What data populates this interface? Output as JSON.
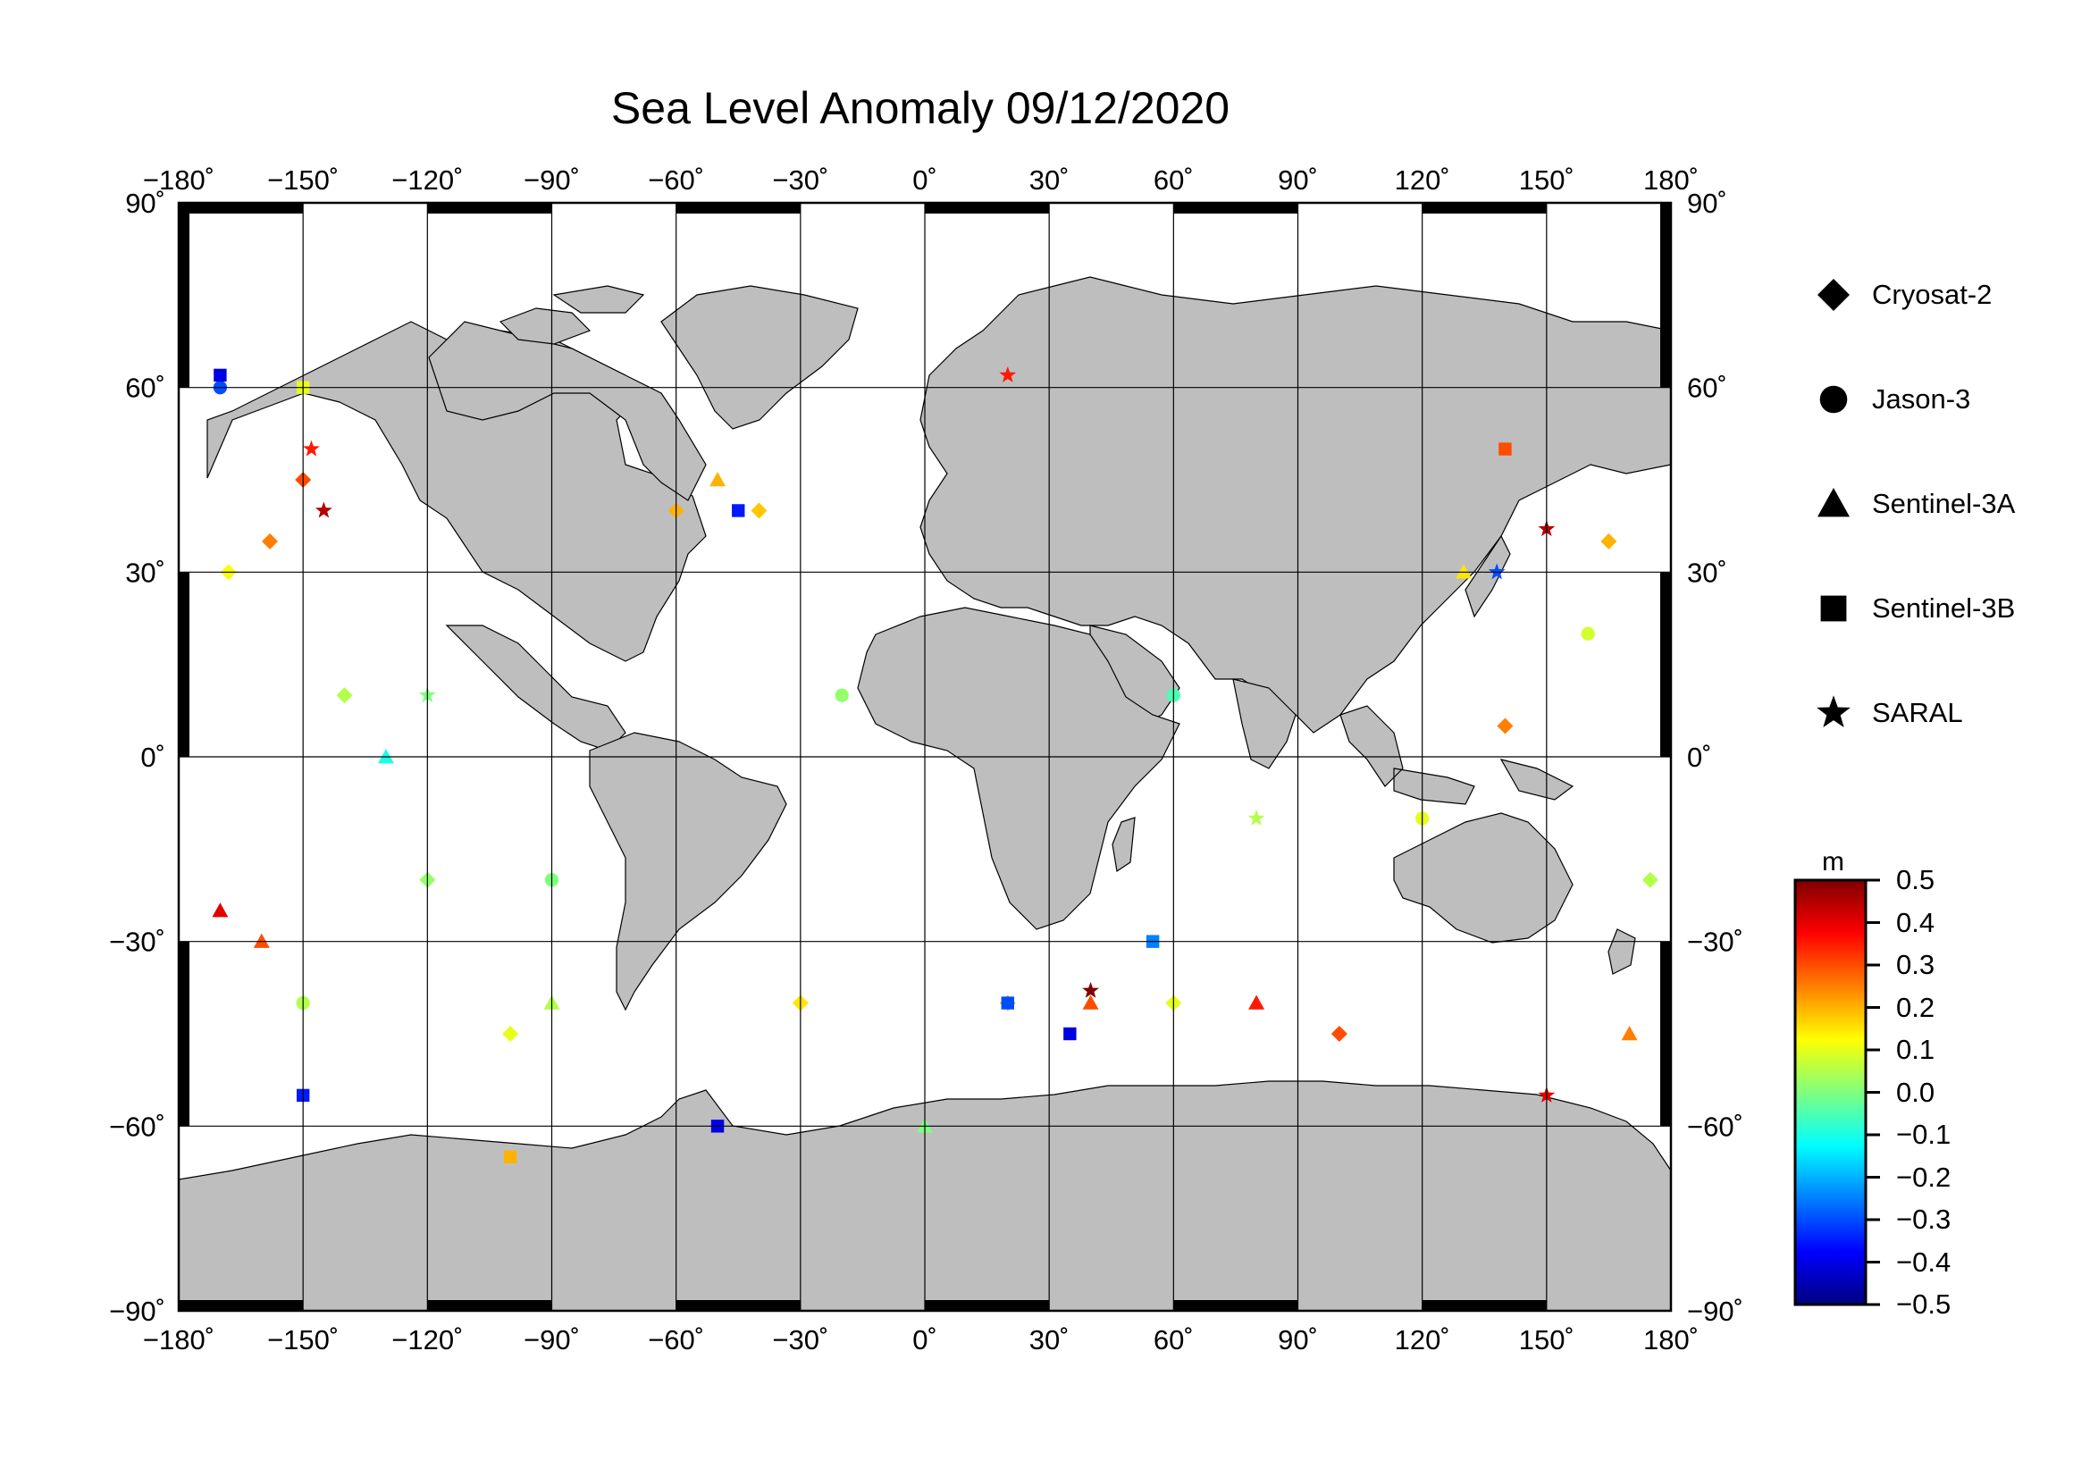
{
  "title": "Sea Level Anomaly 09/12/2020",
  "lon_ticks": [
    "−180˚",
    "−150˚",
    "−120˚",
    "−90˚",
    "−60˚",
    "−30˚",
    "0˚",
    "30˚",
    "60˚",
    "90˚",
    "120˚",
    "150˚",
    "180˚"
  ],
  "lat_ticks": [
    "90˚",
    "60˚",
    "30˚",
    "0˚",
    "−30˚",
    "−60˚",
    "−90˚"
  ],
  "map_extent": {
    "lon": [
      -180,
      180
    ],
    "lat": [
      -90,
      90
    ]
  },
  "land_color": "#bebebe",
  "legend": [
    {
      "label": "Cryosat-2",
      "symbol": "diamond"
    },
    {
      "label": "Jason-3",
      "symbol": "circle"
    },
    {
      "label": "Sentinel-3A",
      "symbol": "triangle"
    },
    {
      "label": "Sentinel-3B",
      "symbol": "square"
    },
    {
      "label": "SARAL",
      "symbol": "star"
    }
  ],
  "colorbar": {
    "unit": "m",
    "range": [
      -0.5,
      0.5
    ],
    "labels": [
      "0.5",
      "0.4",
      "0.3",
      "0.2",
      "0.1",
      "0.0",
      "−0.1",
      "−0.2",
      "−0.3",
      "−0.4",
      "−0.5"
    ],
    "colors": [
      "#00007f",
      "#0000ff",
      "#007fff",
      "#00ffff",
      "#7fff7f",
      "#ffff00",
      "#ff7f00",
      "#ff0000",
      "#7f0000"
    ]
  },
  "chart_data": {
    "type": "scatter",
    "title": "Sea Level Anomaly 09/12/2020",
    "xlabel": "",
    "ylabel": "",
    "xlim": [
      -180,
      180
    ],
    "ylim": [
      -90,
      90
    ],
    "color_scale": {
      "unit": "m",
      "range": [
        -0.5,
        0.5
      ]
    },
    "series": [
      {
        "name": "Cryosat-2",
        "points": [
          [
            -168,
            30,
            0.12
          ],
          [
            -158,
            35,
            0.25
          ],
          [
            -150,
            45,
            0.3
          ],
          [
            -140,
            10,
            0.05
          ],
          [
            -120,
            -20,
            0.02
          ],
          [
            -100,
            -45,
            0.1
          ],
          [
            -60,
            40,
            0.2
          ],
          [
            -40,
            40,
            0.18
          ],
          [
            -30,
            -40,
            0.15
          ],
          [
            20,
            -40,
            0.2
          ],
          [
            60,
            -40,
            0.1
          ],
          [
            100,
            -45,
            0.3
          ],
          [
            140,
            5,
            0.25
          ],
          [
            165,
            35,
            0.2
          ],
          [
            175,
            -20,
            0.05
          ]
        ]
      },
      {
        "name": "Jason-3",
        "points": [
          [
            -170,
            60,
            -0.3
          ],
          [
            -150,
            -40,
            0.05
          ],
          [
            -90,
            -20,
            0.0
          ],
          [
            -20,
            10,
            0.02
          ],
          [
            60,
            10,
            -0.05
          ],
          [
            120,
            -10,
            0.1
          ],
          [
            160,
            20,
            0.08
          ]
        ]
      },
      {
        "name": "Sentinel-3A",
        "points": [
          [
            -170,
            -25,
            0.4
          ],
          [
            -160,
            -30,
            0.3
          ],
          [
            -130,
            0,
            -0.1
          ],
          [
            -90,
            -40,
            0.05
          ],
          [
            -50,
            45,
            0.2
          ],
          [
            0,
            -60,
            0.0
          ],
          [
            40,
            -40,
            0.3
          ],
          [
            80,
            -40,
            0.35
          ],
          [
            130,
            30,
            0.15
          ],
          [
            170,
            -45,
            0.25
          ]
        ]
      },
      {
        "name": "Sentinel-3B",
        "points": [
          [
            -170,
            62,
            -0.4
          ],
          [
            -150,
            -55,
            -0.35
          ],
          [
            -50,
            -60,
            -0.4
          ],
          [
            -45,
            40,
            -0.35
          ],
          [
            20,
            -40,
            -0.3
          ],
          [
            35,
            -45,
            -0.4
          ],
          [
            55,
            -30,
            -0.25
          ],
          [
            140,
            50,
            0.3
          ],
          [
            -100,
            -65,
            0.2
          ],
          [
            -150,
            60,
            0.1
          ]
        ]
      },
      {
        "name": "SARAL",
        "points": [
          [
            -145,
            40,
            0.45
          ],
          [
            -148,
            50,
            0.35
          ],
          [
            20,
            62,
            0.35
          ],
          [
            40,
            -38,
            0.5
          ],
          [
            150,
            37,
            0.45
          ],
          [
            150,
            -55,
            0.4
          ],
          [
            138,
            30,
            -0.3
          ],
          [
            -120,
            10,
            0.0
          ],
          [
            80,
            -10,
            0.05
          ]
        ]
      }
    ]
  }
}
